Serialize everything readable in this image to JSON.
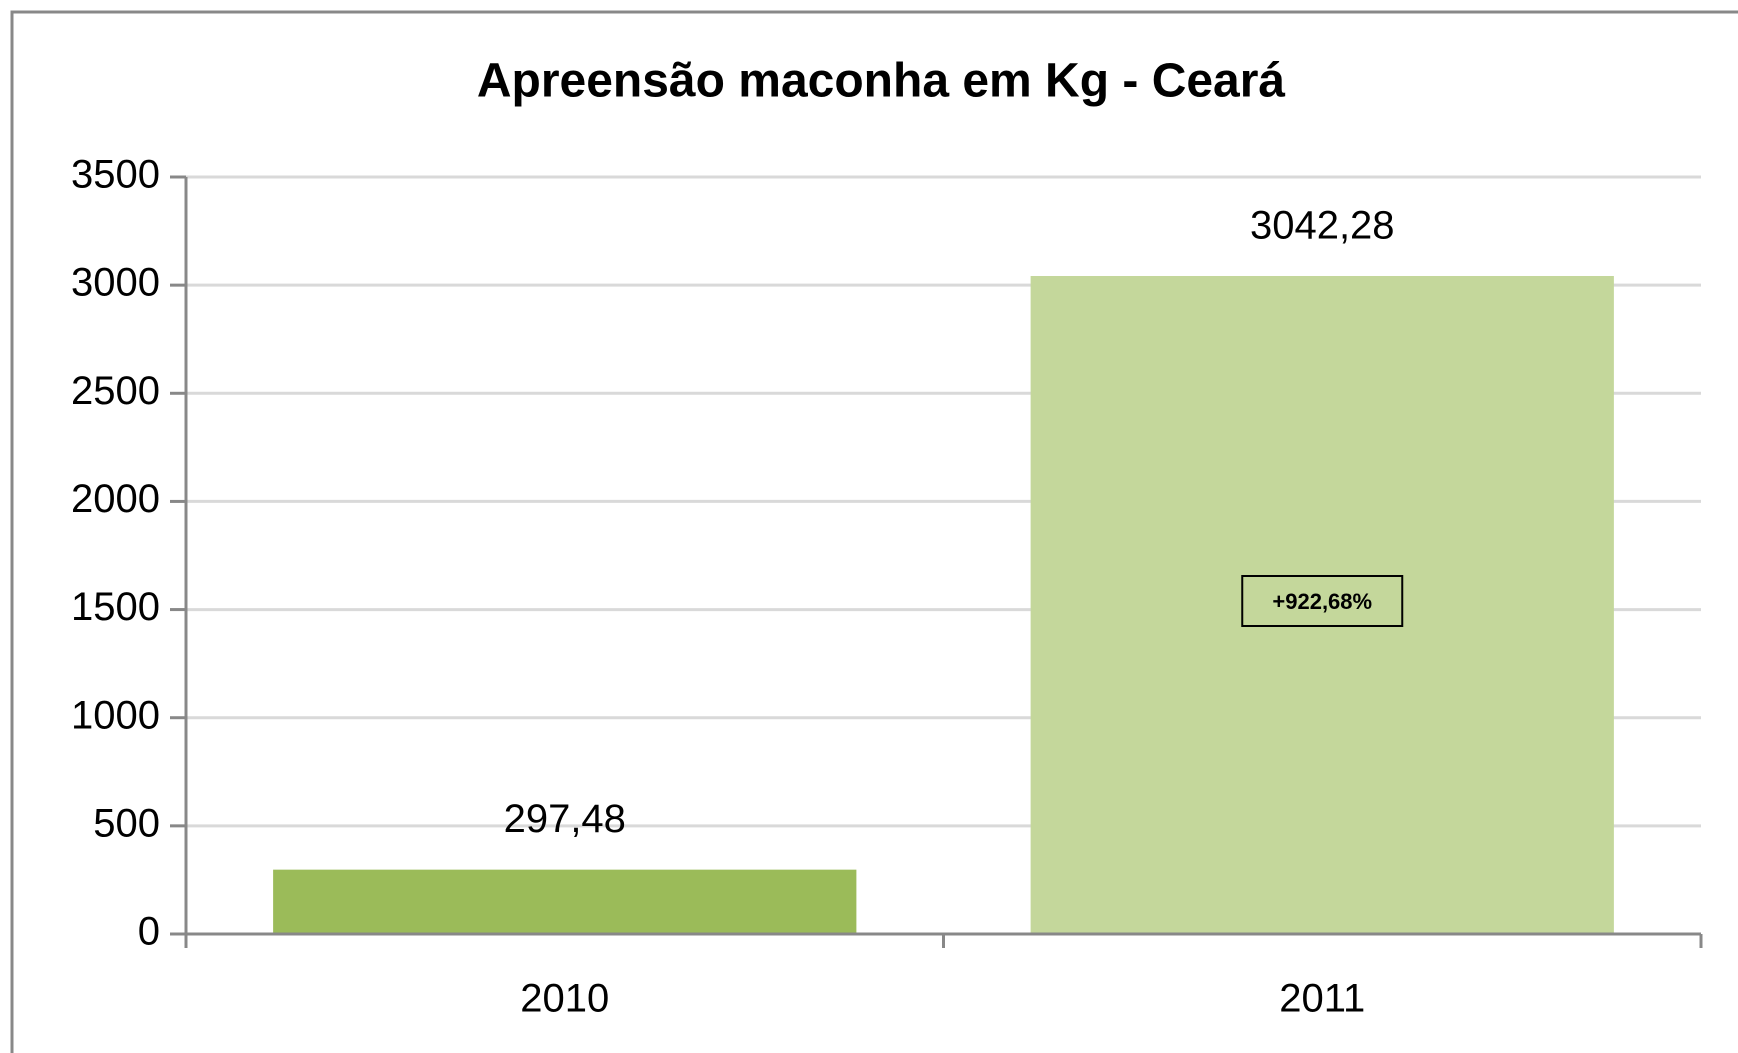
{
  "chart_data": {
    "type": "bar",
    "title": "Apreensão maconha em Kg - Ceará",
    "categories": [
      "2010",
      "2011"
    ],
    "values": [
      297.48,
      3042.28
    ],
    "value_labels": [
      "297,48",
      "3042,28"
    ],
    "colors": [
      "#9bbb59",
      "#c4d79b"
    ],
    "annotation": "+922,68%",
    "ylim": [
      0,
      3500
    ],
    "yticks": [
      0,
      500,
      1000,
      1500,
      2000,
      2500,
      3000,
      3500
    ],
    "grid": true
  }
}
